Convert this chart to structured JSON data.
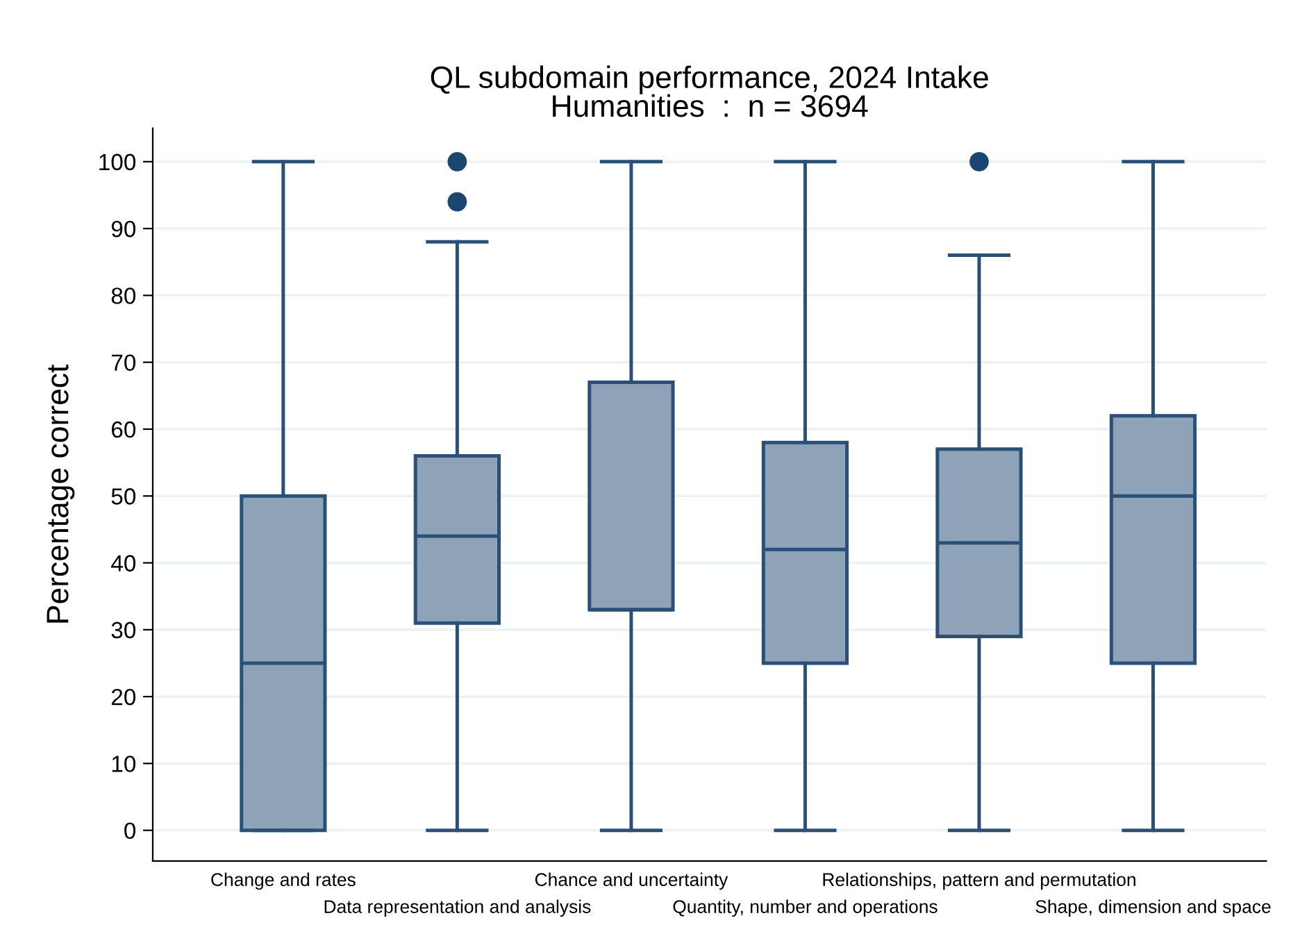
{
  "chart_data": {
    "type": "box",
    "title": "QL subdomain performance, 2024 Intake\nHumanities  :  n = 3694",
    "ylabel": "Percentage correct",
    "categories": [
      "Change and rates",
      "Data representation and analysis",
      "Chance and uncertainty",
      "Quantity, number and operations",
      "Relationships, pattern and permutation",
      "Shape, dimension and space"
    ],
    "boxes": [
      {
        "low": 0,
        "q1": 0,
        "median": 25,
        "q3": 50,
        "high": 100
      },
      {
        "low": 0,
        "q1": 31,
        "median": 44,
        "q3": 56,
        "high": 88,
        "outliers": [
          94,
          100
        ]
      },
      {
        "low": 0,
        "q1": 33,
        "median": 33,
        "q3": 67,
        "high": 100
      },
      {
        "low": 0,
        "q1": 25,
        "median": 42,
        "q3": 58,
        "high": 100
      },
      {
        "low": 0,
        "q1": 29,
        "median": 43,
        "q3": 57,
        "high": 86,
        "outliers": [
          100
        ]
      },
      {
        "low": 0,
        "q1": 25,
        "median": 50,
        "q3": 62,
        "high": 100
      }
    ],
    "color": "#8ea3b7",
    "ylim": [
      -4.6,
      105
    ],
    "yticks": [
      0,
      10,
      20,
      30,
      40,
      50,
      60,
      70,
      80,
      90,
      100
    ],
    "grid": "y"
  }
}
